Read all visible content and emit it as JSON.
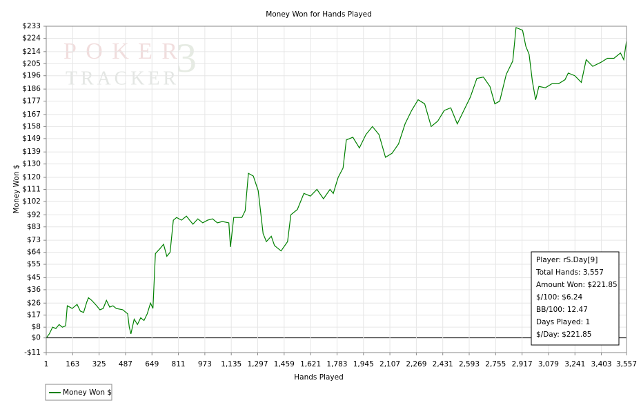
{
  "chart_data": {
    "type": "line",
    "title": "Money Won for Hands Played",
    "x_label": "Hands Played",
    "y_label": "Money Won $",
    "watermark": {
      "top": "POKER",
      "mark": "3",
      "bottom": "TRACKER"
    },
    "annotations": [
      "Player: rS.Day[9]",
      "Total Hands: 3,557",
      "Amount Won: $221.85",
      "$/100: $6.24",
      "BB/100: 12.47",
      "Days Played: 1",
      "$/Day: $221.85"
    ],
    "grid": true,
    "legend": "bottom-left",
    "xlim": [
      1,
      3557
    ],
    "ylim": [
      -11,
      233
    ],
    "xticks": [
      1,
      163,
      325,
      487,
      649,
      811,
      973,
      {
        "value": 1135,
        "label": "1,135"
      },
      {
        "value": 1297,
        "label": "1,297"
      },
      {
        "value": 1459,
        "label": "1,459"
      },
      {
        "value": 1621,
        "label": "1,621"
      },
      {
        "value": 1783,
        "label": "1,783"
      },
      {
        "value": 1945,
        "label": "1,945"
      },
      {
        "value": 2107,
        "label": "2,107"
      },
      {
        "value": 2269,
        "label": "2,269"
      },
      {
        "value": 2431,
        "label": "2,431"
      },
      {
        "value": 2593,
        "label": "2,593"
      },
      {
        "value": 2755,
        "label": "2,755"
      },
      {
        "value": 2917,
        "label": "2,917"
      },
      {
        "value": 3079,
        "label": "3,079"
      },
      {
        "value": 3241,
        "label": "3,241"
      },
      {
        "value": 3403,
        "label": "3,403"
      },
      {
        "value": 3557,
        "label": "3,557"
      }
    ],
    "yticks": [
      {
        "value": -11,
        "label": "-$11"
      },
      {
        "value": 0,
        "label": "$0"
      },
      {
        "value": 8,
        "label": "$8"
      },
      {
        "value": 17,
        "label": "$17"
      },
      {
        "value": 26,
        "label": "$26"
      },
      {
        "value": 36,
        "label": "$36"
      },
      {
        "value": 45,
        "label": "$45"
      },
      {
        "value": 55,
        "label": "$55"
      },
      {
        "value": 64,
        "label": "$64"
      },
      {
        "value": 73,
        "label": "$73"
      },
      {
        "value": 83,
        "label": "$83"
      },
      {
        "value": 92,
        "label": "$92"
      },
      {
        "value": 102,
        "label": "$102"
      },
      {
        "value": 111,
        "label": "$111"
      },
      {
        "value": 120,
        "label": "$120"
      },
      {
        "value": 130,
        "label": "$130"
      },
      {
        "value": 139,
        "label": "$139"
      },
      {
        "value": 149,
        "label": "$149"
      },
      {
        "value": 158,
        "label": "$158"
      },
      {
        "value": 167,
        "label": "$167"
      },
      {
        "value": 177,
        "label": "$177"
      },
      {
        "value": 186,
        "label": "$186"
      },
      {
        "value": 196,
        "label": "$196"
      },
      {
        "value": 205,
        "label": "$205"
      },
      {
        "value": 214,
        "label": "$214"
      },
      {
        "value": 224,
        "label": "$224"
      },
      {
        "value": 233,
        "label": "$233"
      }
    ],
    "series": [
      {
        "name": "Money Won $",
        "color": "#008000",
        "x": [
          1,
          20,
          40,
          60,
          80,
          100,
          120,
          130,
          160,
          190,
          210,
          230,
          250,
          260,
          280,
          310,
          330,
          350,
          370,
          390,
          410,
          430,
          470,
          500,
          510,
          520,
          540,
          560,
          580,
          600,
          620,
          640,
          655,
          670,
          700,
          720,
          740,
          760,
          780,
          800,
          830,
          860,
          880,
          900,
          930,
          960,
          990,
          1020,
          1050,
          1080,
          1120,
          1130,
          1150,
          1200,
          1220,
          1240,
          1270,
          1300,
          1330,
          1350,
          1380,
          1400,
          1440,
          1480,
          1500,
          1540,
          1580,
          1620,
          1660,
          1700,
          1740,
          1760,
          1790,
          1820,
          1840,
          1880,
          1920,
          1960,
          2000,
          2040,
          2080,
          2120,
          2160,
          2200,
          2240,
          2280,
          2320,
          2360,
          2400,
          2440,
          2480,
          2520,
          2560,
          2600,
          2640,
          2680,
          2720,
          2750,
          2780,
          2820,
          2860,
          2880,
          2920,
          2940,
          2960,
          2980,
          3000,
          3020,
          3060,
          3100,
          3140,
          3180,
          3200,
          3240,
          3280,
          3310,
          3350,
          3400,
          3440,
          3480,
          3520,
          3540,
          3557
        ],
        "values": [
          0,
          3,
          8,
          7,
          10,
          8,
          9,
          24,
          22,
          25,
          20,
          19,
          27,
          30,
          28,
          24,
          21,
          22,
          28,
          23,
          24,
          22,
          21,
          18,
          8,
          3,
          14,
          10,
          15,
          13,
          18,
          26,
          22,
          63,
          67,
          70,
          61,
          64,
          88,
          90,
          88,
          91,
          88,
          85,
          89,
          86,
          88,
          89,
          86,
          87,
          86,
          68,
          90,
          90,
          95,
          123,
          121,
          110,
          78,
          72,
          76,
          69,
          65,
          72,
          92,
          96,
          108,
          106,
          111,
          104,
          111,
          108,
          120,
          127,
          148,
          150,
          142,
          152,
          158,
          152,
          135,
          138,
          145,
          160,
          170,
          178,
          175,
          158,
          162,
          170,
          172,
          160,
          170,
          180,
          194,
          195,
          188,
          175,
          177,
          197,
          207,
          232,
          230,
          218,
          212,
          192,
          178,
          188,
          187,
          190,
          190,
          193,
          198,
          196,
          191,
          208,
          203,
          206,
          209,
          209,
          213,
          208,
          222
        ]
      }
    ]
  }
}
